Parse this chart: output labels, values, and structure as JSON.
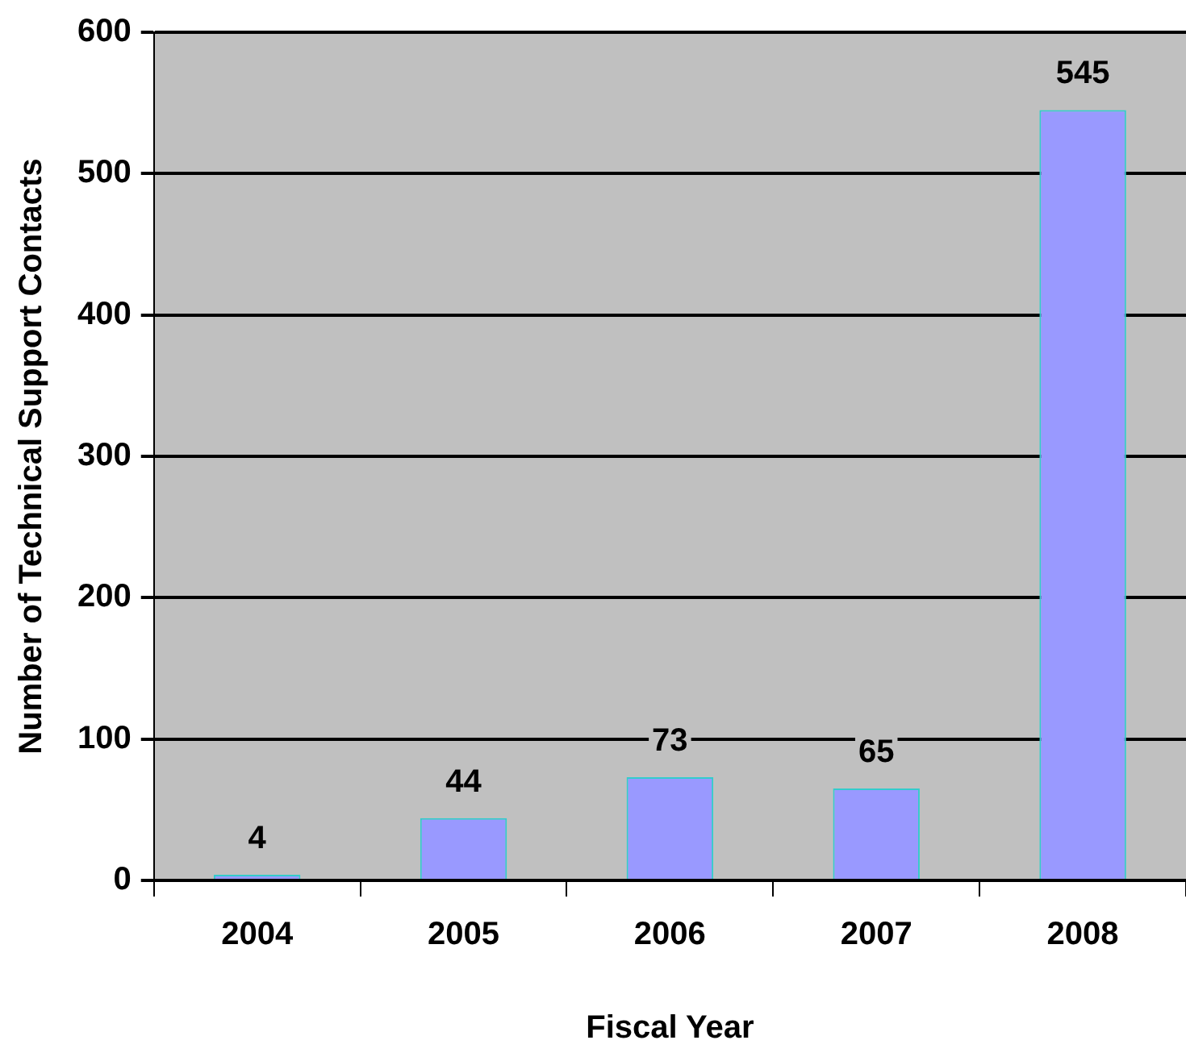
{
  "chart_data": {
    "type": "bar",
    "xlabel": "Fiscal Year",
    "ylabel": "Number of Technical Support Contacts",
    "categories": [
      "2004",
      "2005",
      "2006",
      "2007",
      "2008"
    ],
    "values": [
      4,
      44,
      73,
      65,
      545
    ],
    "color": "#9999ff",
    "ylim": [
      0,
      600
    ],
    "yticks": [
      0,
      100,
      200,
      300,
      400,
      500,
      600
    ],
    "grid": "y",
    "data_labels": true
  }
}
